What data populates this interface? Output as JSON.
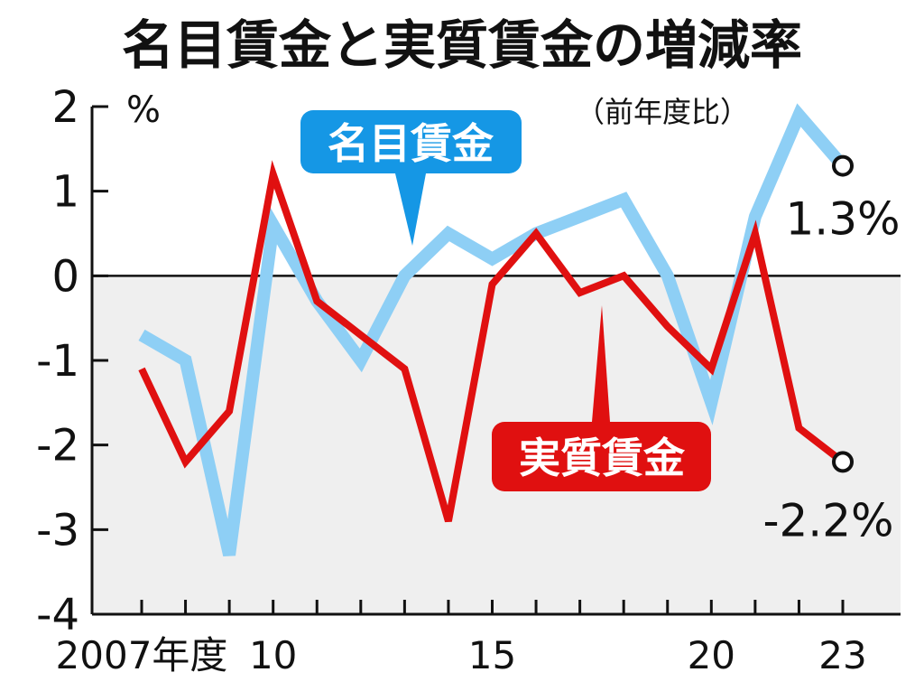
{
  "chart_data": {
    "type": "line",
    "title": "名目賃金と実質賃金の増減率",
    "subtitle": "（前年度比）",
    "yunit": "%",
    "ylim": [
      -4,
      2
    ],
    "yticks": [
      "2",
      "1",
      "0",
      "-1",
      "-2",
      "-3",
      "-4"
    ],
    "x": [
      2007,
      2008,
      2009,
      2010,
      2011,
      2012,
      2013,
      2014,
      2015,
      2016,
      2017,
      2018,
      2019,
      2020,
      2021,
      2022,
      2023
    ],
    "xtick_labels": [
      {
        "x": 2007,
        "label": "2007年度"
      },
      {
        "x": 2010,
        "label": "10"
      },
      {
        "x": 2015,
        "label": "15"
      },
      {
        "x": 2020,
        "label": "20"
      },
      {
        "x": 2023,
        "label": "23"
      }
    ],
    "negative_region_shaded": true,
    "series": [
      {
        "name": "名目賃金",
        "color": "#8ecff5",
        "callout_color": "#1597e5",
        "values": [
          -0.7,
          -1.0,
          -3.3,
          0.6,
          -0.3,
          -1.0,
          0.0,
          0.5,
          0.2,
          0.5,
          0.7,
          0.9,
          0.0,
          -1.5,
          0.7,
          1.9,
          1.3
        ],
        "end_label": "1.3%"
      },
      {
        "name": "実質賃金",
        "color": "#e01010",
        "callout_color": "#e01010",
        "values": [
          -1.1,
          -2.2,
          -1.6,
          1.2,
          -0.3,
          -0.7,
          -1.1,
          -2.9,
          -0.1,
          0.5,
          -0.2,
          0.0,
          -0.6,
          -1.1,
          0.5,
          -1.8,
          -2.2
        ],
        "end_label": "-2.2%"
      }
    ]
  }
}
